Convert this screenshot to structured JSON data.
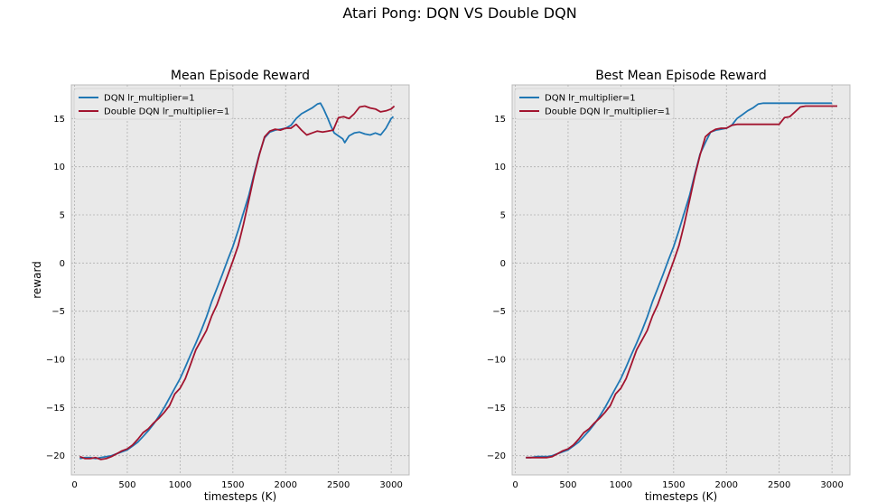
{
  "figure": {
    "suptitle": "Atari Pong: DQN VS Double DQN"
  },
  "chart_data": [
    {
      "type": "line",
      "title": "Mean Episode Reward",
      "xlabel": "timesteps (K)",
      "ylabel": "reward",
      "xlim": [
        -30,
        3170
      ],
      "ylim": [
        -22,
        18.5
      ],
      "xticks": [
        0,
        500,
        1000,
        1500,
        2000,
        2500,
        3000
      ],
      "yticks": [
        -20,
        -15,
        -10,
        -5,
        0,
        5,
        10,
        15
      ],
      "grid": true,
      "legend_position": "top-left",
      "series": [
        {
          "name": "DQN lr_multiplier=1",
          "color": "#1f77b4",
          "points": [
            [
              50,
              -20.3
            ],
            [
              100,
              -20.2
            ],
            [
              150,
              -20.2
            ],
            [
              200,
              -20.3
            ],
            [
              250,
              -20.2
            ],
            [
              300,
              -20.1
            ],
            [
              350,
              -20.0
            ],
            [
              400,
              -19.8
            ],
            [
              450,
              -19.6
            ],
            [
              500,
              -19.4
            ],
            [
              550,
              -19.0
            ],
            [
              600,
              -18.6
            ],
            [
              650,
              -18.0
            ],
            [
              700,
              -17.4
            ],
            [
              750,
              -16.7
            ],
            [
              800,
              -15.9
            ],
            [
              850,
              -15.0
            ],
            [
              900,
              -14.0
            ],
            [
              950,
              -13.0
            ],
            [
              1000,
              -12.0
            ],
            [
              1050,
              -10.8
            ],
            [
              1100,
              -9.5
            ],
            [
              1150,
              -8.3
            ],
            [
              1200,
              -7.0
            ],
            [
              1250,
              -5.6
            ],
            [
              1300,
              -4.0
            ],
            [
              1350,
              -2.6
            ],
            [
              1400,
              -1.2
            ],
            [
              1450,
              0.3
            ],
            [
              1500,
              1.7
            ],
            [
              1550,
              3.4
            ],
            [
              1600,
              5.2
            ],
            [
              1650,
              7.0
            ],
            [
              1700,
              9.2
            ],
            [
              1750,
              11.3
            ],
            [
              1800,
              13.0
            ],
            [
              1850,
              13.6
            ],
            [
              1900,
              13.8
            ],
            [
              1950,
              13.9
            ],
            [
              2000,
              14.0
            ],
            [
              2050,
              14.3
            ],
            [
              2100,
              15.0
            ],
            [
              2150,
              15.5
            ],
            [
              2200,
              15.8
            ],
            [
              2250,
              16.1
            ],
            [
              2300,
              16.5
            ],
            [
              2330,
              16.6
            ],
            [
              2360,
              16.0
            ],
            [
              2400,
              15.0
            ],
            [
              2430,
              14.2
            ],
            [
              2460,
              13.5
            ],
            [
              2500,
              13.2
            ],
            [
              2540,
              12.9
            ],
            [
              2560,
              12.5
            ],
            [
              2600,
              13.2
            ],
            [
              2650,
              13.5
            ],
            [
              2700,
              13.6
            ],
            [
              2750,
              13.4
            ],
            [
              2800,
              13.3
            ],
            [
              2850,
              13.5
            ],
            [
              2900,
              13.3
            ],
            [
              2950,
              14.0
            ],
            [
              3000,
              15.0
            ],
            [
              3020,
              15.2
            ]
          ]
        },
        {
          "name": "Double DQN lr_multiplier=1",
          "color": "#a2142f",
          "points": [
            [
              50,
              -20.1
            ],
            [
              100,
              -20.3
            ],
            [
              150,
              -20.3
            ],
            [
              200,
              -20.2
            ],
            [
              250,
              -20.4
            ],
            [
              300,
              -20.3
            ],
            [
              350,
              -20.1
            ],
            [
              400,
              -19.8
            ],
            [
              450,
              -19.5
            ],
            [
              500,
              -19.3
            ],
            [
              550,
              -18.9
            ],
            [
              600,
              -18.3
            ],
            [
              650,
              -17.6
            ],
            [
              700,
              -17.2
            ],
            [
              750,
              -16.6
            ],
            [
              800,
              -16.1
            ],
            [
              850,
              -15.5
            ],
            [
              900,
              -14.8
            ],
            [
              950,
              -13.6
            ],
            [
              1000,
              -13.0
            ],
            [
              1050,
              -12.0
            ],
            [
              1100,
              -10.5
            ],
            [
              1150,
              -9.0
            ],
            [
              1200,
              -8.0
            ],
            [
              1250,
              -7.0
            ],
            [
              1300,
              -5.5
            ],
            [
              1350,
              -4.3
            ],
            [
              1400,
              -2.8
            ],
            [
              1450,
              -1.3
            ],
            [
              1500,
              0.2
            ],
            [
              1550,
              1.8
            ],
            [
              1600,
              4.0
            ],
            [
              1650,
              6.5
            ],
            [
              1700,
              9.0
            ],
            [
              1750,
              11.2
            ],
            [
              1800,
              13.1
            ],
            [
              1850,
              13.7
            ],
            [
              1900,
              13.9
            ],
            [
              1950,
              13.8
            ],
            [
              2000,
              14.0
            ],
            [
              2050,
              14.0
            ],
            [
              2100,
              14.4
            ],
            [
              2150,
              13.8
            ],
            [
              2200,
              13.3
            ],
            [
              2250,
              13.5
            ],
            [
              2300,
              13.7
            ],
            [
              2350,
              13.6
            ],
            [
              2400,
              13.7
            ],
            [
              2450,
              13.8
            ],
            [
              2500,
              15.1
            ],
            [
              2550,
              15.2
            ],
            [
              2600,
              15.0
            ],
            [
              2650,
              15.5
            ],
            [
              2700,
              16.2
            ],
            [
              2750,
              16.3
            ],
            [
              2800,
              16.1
            ],
            [
              2850,
              16.0
            ],
            [
              2900,
              15.7
            ],
            [
              2950,
              15.8
            ],
            [
              3000,
              16.0
            ],
            [
              3030,
              16.3
            ]
          ]
        }
      ]
    },
    {
      "type": "line",
      "title": "Best Mean Episode Reward",
      "xlabel": "timesteps (K)",
      "ylabel": "",
      "xlim": [
        -30,
        3170
      ],
      "ylim": [
        -22,
        18.5
      ],
      "xticks": [
        0,
        500,
        1000,
        1500,
        2000,
        2500,
        3000
      ],
      "yticks": [
        -20,
        -15,
        -10,
        -5,
        0,
        5,
        10,
        15
      ],
      "grid": true,
      "legend_position": "top-left",
      "series": [
        {
          "name": "DQN lr_multiplier=1",
          "color": "#1f77b4",
          "points": [
            [
              100,
              -20.2
            ],
            [
              150,
              -20.2
            ],
            [
              200,
              -20.1
            ],
            [
              300,
              -20.1
            ],
            [
              350,
              -20.0
            ],
            [
              400,
              -19.8
            ],
            [
              450,
              -19.6
            ],
            [
              500,
              -19.4
            ],
            [
              550,
              -19.0
            ],
            [
              600,
              -18.6
            ],
            [
              650,
              -18.0
            ],
            [
              700,
              -17.4
            ],
            [
              750,
              -16.7
            ],
            [
              800,
              -15.9
            ],
            [
              850,
              -15.0
            ],
            [
              900,
              -14.0
            ],
            [
              950,
              -13.0
            ],
            [
              1000,
              -12.0
            ],
            [
              1050,
              -10.8
            ],
            [
              1100,
              -9.5
            ],
            [
              1150,
              -8.3
            ],
            [
              1200,
              -7.0
            ],
            [
              1250,
              -5.6
            ],
            [
              1300,
              -4.0
            ],
            [
              1350,
              -2.6
            ],
            [
              1400,
              -1.2
            ],
            [
              1450,
              0.3
            ],
            [
              1500,
              1.7
            ],
            [
              1550,
              3.4
            ],
            [
              1600,
              5.2
            ],
            [
              1650,
              7.0
            ],
            [
              1700,
              9.2
            ],
            [
              1750,
              11.3
            ],
            [
              1800,
              12.5
            ],
            [
              1850,
              13.6
            ],
            [
              1900,
              13.8
            ],
            [
              1950,
              13.9
            ],
            [
              2000,
              14.0
            ],
            [
              2050,
              14.3
            ],
            [
              2100,
              15.0
            ],
            [
              2150,
              15.4
            ],
            [
              2200,
              15.8
            ],
            [
              2250,
              16.1
            ],
            [
              2300,
              16.5
            ],
            [
              2350,
              16.6
            ],
            [
              3000,
              16.6
            ]
          ]
        },
        {
          "name": "Double DQN lr_multiplier=1",
          "color": "#a2142f",
          "points": [
            [
              100,
              -20.2
            ],
            [
              300,
              -20.2
            ],
            [
              350,
              -20.1
            ],
            [
              400,
              -19.8
            ],
            [
              450,
              -19.5
            ],
            [
              500,
              -19.3
            ],
            [
              550,
              -18.9
            ],
            [
              600,
              -18.3
            ],
            [
              650,
              -17.6
            ],
            [
              700,
              -17.2
            ],
            [
              750,
              -16.6
            ],
            [
              800,
              -16.1
            ],
            [
              850,
              -15.5
            ],
            [
              900,
              -14.8
            ],
            [
              950,
              -13.6
            ],
            [
              1000,
              -13.0
            ],
            [
              1050,
              -12.0
            ],
            [
              1100,
              -10.5
            ],
            [
              1150,
              -9.0
            ],
            [
              1200,
              -8.0
            ],
            [
              1250,
              -7.0
            ],
            [
              1300,
              -5.5
            ],
            [
              1350,
              -4.3
            ],
            [
              1400,
              -2.8
            ],
            [
              1450,
              -1.3
            ],
            [
              1500,
              0.2
            ],
            [
              1550,
              1.8
            ],
            [
              1600,
              4.0
            ],
            [
              1650,
              6.5
            ],
            [
              1700,
              9.0
            ],
            [
              1750,
              11.2
            ],
            [
              1800,
              13.1
            ],
            [
              1850,
              13.6
            ],
            [
              1900,
              13.9
            ],
            [
              1950,
              14.0
            ],
            [
              2000,
              14.0
            ],
            [
              2050,
              14.3
            ],
            [
              2100,
              14.4
            ],
            [
              2500,
              14.4
            ],
            [
              2550,
              15.1
            ],
            [
              2600,
              15.2
            ],
            [
              2650,
              15.7
            ],
            [
              2700,
              16.2
            ],
            [
              2750,
              16.3
            ],
            [
              3050,
              16.3
            ]
          ]
        }
      ]
    }
  ]
}
